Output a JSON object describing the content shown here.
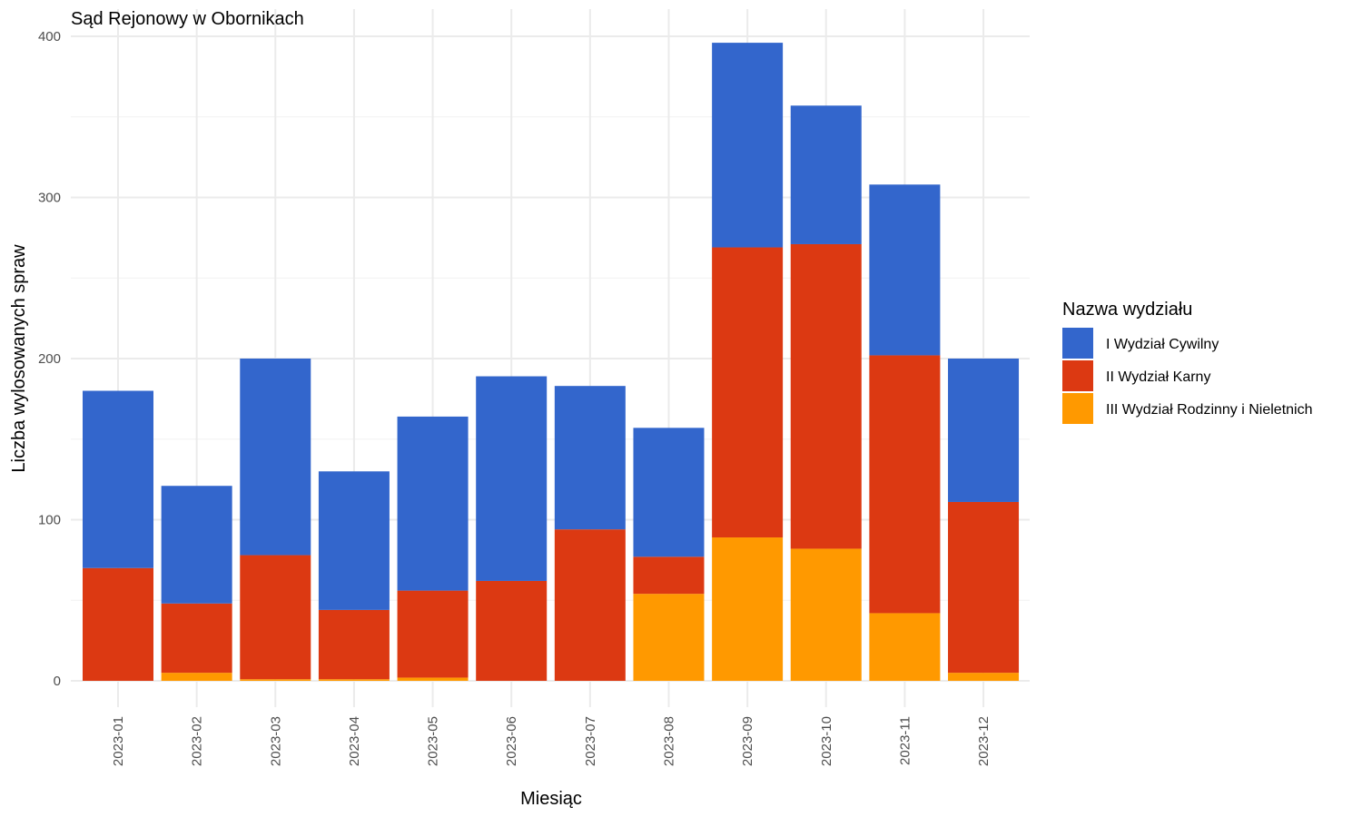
{
  "chart_data": {
    "type": "bar",
    "stacked": true,
    "title": "Sąd Rejonowy w Obornikach",
    "xlabel": "Miesiąc",
    "ylabel": "Liczba wylosowanych spraw",
    "ylim": [
      0,
      400
    ],
    "yticks": [
      0,
      100,
      200,
      300,
      400
    ],
    "grid": true,
    "legend_title": "Nazwa wydziału",
    "legend_position": "right",
    "categories": [
      "2023-01",
      "2023-02",
      "2023-03",
      "2023-04",
      "2023-05",
      "2023-06",
      "2023-07",
      "2023-08",
      "2023-09",
      "2023-10",
      "2023-11",
      "2023-12"
    ],
    "series": [
      {
        "name": "III Wydział Rodzinny i Nieletnich",
        "color": "#FF9900",
        "values": [
          0,
          5,
          1,
          1,
          2,
          0,
          0,
          54,
          89,
          82,
          42,
          5
        ]
      },
      {
        "name": "II Wydział Karny",
        "color": "#DC3912",
        "values": [
          70,
          43,
          77,
          43,
          54,
          62,
          94,
          23,
          180,
          189,
          160,
          106
        ]
      },
      {
        "name": "I Wydział Cywilny",
        "color": "#3366CC",
        "values": [
          110,
          73,
          122,
          86,
          108,
          127,
          89,
          80,
          127,
          86,
          106,
          89
        ]
      }
    ],
    "legend_order": [
      "I Wydział Cywilny",
      "II Wydział Karny",
      "III Wydział Rodzinny i Nieletnich"
    ]
  }
}
